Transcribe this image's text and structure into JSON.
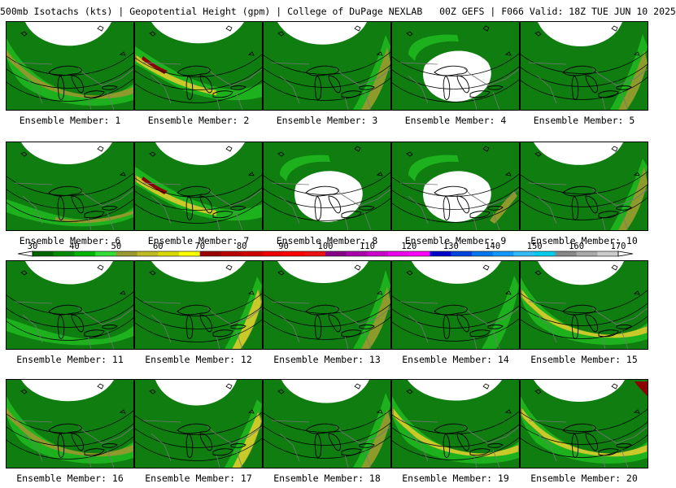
{
  "header": {
    "title": "500mb Isotachs (kts) | Geopotential Height (gpm) | College of DuPage NEXLAB",
    "run": "00Z GEFS | F066 Valid: 18Z TUE JUN 10 2025"
  },
  "member_label_prefix": "Ensemble Member: ",
  "members": [
    {
      "label": "Ensemble Member: 1",
      "max_speed_kts": 60,
      "jet_band": "broad-southwest"
    },
    {
      "label": "Ensemble Member: 2",
      "max_speed_kts": 80,
      "jet_band": "northwest-core"
    },
    {
      "label": "Ensemble Member: 3",
      "max_speed_kts": 60,
      "jet_band": "east-arc"
    },
    {
      "label": "Ensemble Member: 4",
      "max_speed_kts": 50,
      "jet_band": "closed-low"
    },
    {
      "label": "Ensemble Member: 5",
      "max_speed_kts": 60,
      "jet_band": "east-arc"
    },
    {
      "label": "Ensemble Member: 6",
      "max_speed_kts": 60,
      "jet_band": "broad"
    },
    {
      "label": "Ensemble Member: 7",
      "max_speed_kts": 80,
      "jet_band": "northwest-core"
    },
    {
      "label": "Ensemble Member: 8",
      "max_speed_kts": 50,
      "jet_band": "closed-low"
    },
    {
      "label": "Ensemble Member: 9",
      "max_speed_kts": 60,
      "jet_band": "closed-low"
    },
    {
      "label": "Ensemble Member: 10",
      "max_speed_kts": 60,
      "jet_band": "east-arc"
    },
    {
      "label": "Ensemble Member: 11",
      "max_speed_kts": 50,
      "jet_band": "broad"
    },
    {
      "label": "Ensemble Member: 12",
      "max_speed_kts": 70,
      "jet_band": "east-arc"
    },
    {
      "label": "Ensemble Member: 13",
      "max_speed_kts": 60,
      "jet_band": "east-arc"
    },
    {
      "label": "Ensemble Member: 14",
      "max_speed_kts": 50,
      "jet_band": "east-arc"
    },
    {
      "label": "Ensemble Member: 15",
      "max_speed_kts": 70,
      "jet_band": "broad-southwest"
    },
    {
      "label": "Ensemble Member: 16",
      "max_speed_kts": 60,
      "jet_band": "broad-southwest"
    },
    {
      "label": "Ensemble Member: 17",
      "max_speed_kts": 70,
      "jet_band": "east-arc"
    },
    {
      "label": "Ensemble Member: 18",
      "max_speed_kts": 60,
      "jet_band": "east-arc"
    },
    {
      "label": "Ensemble Member: 19",
      "max_speed_kts": 70,
      "jet_band": "broad-southwest"
    },
    {
      "label": "Ensemble Member: 20",
      "max_speed_kts": 80,
      "jet_band": "broad-southwest"
    }
  ],
  "colorbar": {
    "ticks": [
      "30",
      "40",
      "50",
      "60",
      "70",
      "80",
      "90",
      "100",
      "110",
      "120",
      "130",
      "140",
      "150",
      "160",
      "170"
    ],
    "colors": [
      "#006400",
      "#008c00",
      "#00b400",
      "#33dd33",
      "#999933",
      "#bcbc22",
      "#d9d900",
      "#ffff00",
      "#990000",
      "#bb0000",
      "#d00000",
      "#ee0000",
      "#ff0000",
      "#ee1111",
      "#880088",
      "#aa00aa",
      "#cc00cc",
      "#ee00ee",
      "#ff00ff",
      "#0000cc",
      "#0044dd",
      "#0077ee",
      "#1199ff",
      "#33bbff",
      "#00ccee",
      "#888888",
      "#aaaaaa",
      "#cccccc"
    ]
  },
  "legend_colors": {
    "w40": "#0f7d0f",
    "w50": "#1fb51f",
    "w60": "#8f9a2c",
    "w70": "#c9c92a",
    "w80": "#8b0000",
    "height_contour": "#000000",
    "coast": "#000000",
    "border": "#777777"
  }
}
